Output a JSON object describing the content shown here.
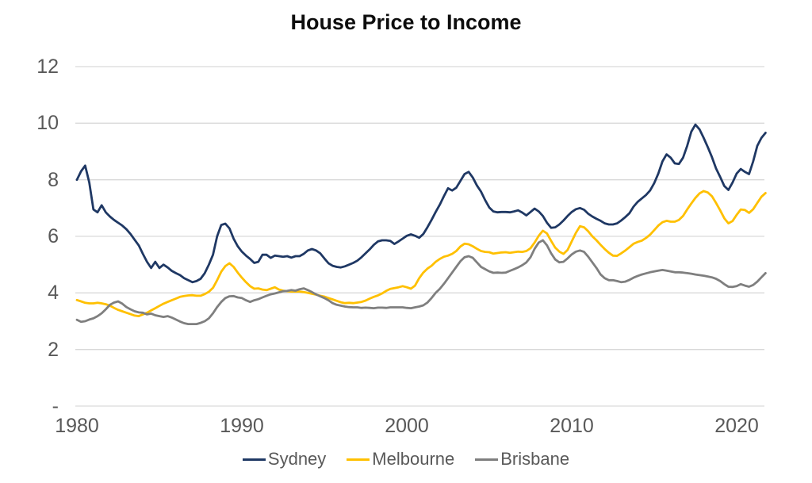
{
  "title": "House Price to Income",
  "chart_data": {
    "type": "line",
    "title": "House Price to Income",
    "xlabel": "",
    "ylabel": "",
    "grid": true,
    "legend_position": "bottom",
    "gridline_color": "#d9d9d9",
    "axis_label_color": "#595959",
    "x_start": 1980,
    "x_step": 0.25,
    "x_end": 2021.75,
    "x_range": [
      1980,
      2021.75
    ],
    "ylim": [
      0,
      12
    ],
    "x_ticks": [
      {
        "label": "1980",
        "value": 1980
      },
      {
        "label": "1990",
        "value": 1990
      },
      {
        "label": "2000",
        "value": 2000
      },
      {
        "label": "2010",
        "value": 2010
      },
      {
        "label": "2020",
        "value": 2020
      }
    ],
    "y_ticks": [
      {
        "label": "12",
        "value": 12
      },
      {
        "label": "10",
        "value": 10
      },
      {
        "label": "8",
        "value": 8
      },
      {
        "label": "6",
        "value": 6
      },
      {
        "label": "4",
        "value": 4
      },
      {
        "label": "2",
        "value": 2
      },
      {
        "label": "-",
        "value": 0
      }
    ],
    "series": [
      {
        "name": "Sydney",
        "color": "#1f3864",
        "values": [
          8.0,
          8.3,
          8.5,
          7.9,
          6.95,
          6.85,
          7.1,
          6.85,
          6.7,
          6.58,
          6.48,
          6.38,
          6.25,
          6.08,
          5.88,
          5.68,
          5.38,
          5.1,
          4.88,
          5.1,
          4.88,
          5.0,
          4.9,
          4.78,
          4.7,
          4.63,
          4.52,
          4.45,
          4.38,
          4.42,
          4.5,
          4.7,
          5.0,
          5.35,
          6.0,
          6.4,
          6.45,
          6.28,
          5.92,
          5.65,
          5.46,
          5.32,
          5.2,
          5.06,
          5.1,
          5.35,
          5.35,
          5.24,
          5.32,
          5.3,
          5.28,
          5.3,
          5.25,
          5.3,
          5.3,
          5.38,
          5.5,
          5.55,
          5.5,
          5.4,
          5.22,
          5.05,
          4.96,
          4.92,
          4.9,
          4.94,
          5.0,
          5.06,
          5.14,
          5.26,
          5.4,
          5.54,
          5.7,
          5.82,
          5.86,
          5.86,
          5.84,
          5.73,
          5.82,
          5.92,
          6.02,
          6.07,
          6.02,
          5.95,
          6.08,
          6.32,
          6.58,
          6.86,
          7.12,
          7.42,
          7.7,
          7.62,
          7.72,
          7.96,
          8.2,
          8.28,
          8.08,
          7.8,
          7.58,
          7.28,
          7.02,
          6.88,
          6.85,
          6.86,
          6.86,
          6.85,
          6.88,
          6.92,
          6.84,
          6.74,
          6.86,
          6.98,
          6.88,
          6.72,
          6.48,
          6.3,
          6.32,
          6.42,
          6.56,
          6.72,
          6.86,
          6.96,
          7.0,
          6.94,
          6.8,
          6.7,
          6.62,
          6.55,
          6.46,
          6.42,
          6.42,
          6.46,
          6.56,
          6.68,
          6.82,
          7.05,
          7.22,
          7.34,
          7.46,
          7.62,
          7.88,
          8.22,
          8.65,
          8.9,
          8.78,
          8.58,
          8.56,
          8.78,
          9.2,
          9.7,
          9.95,
          9.78,
          9.48,
          9.15,
          8.8,
          8.4,
          8.1,
          7.78,
          7.64,
          7.9,
          8.22,
          8.38,
          8.28,
          8.2,
          8.65,
          9.2,
          9.48,
          9.66
        ]
      },
      {
        "name": "Melbourne",
        "color": "#ffc000",
        "values": [
          3.75,
          3.7,
          3.65,
          3.63,
          3.63,
          3.65,
          3.63,
          3.6,
          3.55,
          3.47,
          3.4,
          3.35,
          3.3,
          3.25,
          3.2,
          3.18,
          3.24,
          3.3,
          3.38,
          3.46,
          3.54,
          3.62,
          3.68,
          3.74,
          3.8,
          3.86,
          3.89,
          3.91,
          3.92,
          3.9,
          3.9,
          3.96,
          4.04,
          4.18,
          4.45,
          4.75,
          4.95,
          5.05,
          4.92,
          4.72,
          4.54,
          4.38,
          4.24,
          4.15,
          4.16,
          4.12,
          4.1,
          4.15,
          4.2,
          4.12,
          4.08,
          4.06,
          4.05,
          4.05,
          4.05,
          4.03,
          4.0,
          3.97,
          3.94,
          3.9,
          3.87,
          3.82,
          3.77,
          3.72,
          3.67,
          3.64,
          3.65,
          3.64,
          3.66,
          3.68,
          3.73,
          3.8,
          3.86,
          3.91,
          3.98,
          4.07,
          4.14,
          4.17,
          4.2,
          4.24,
          4.2,
          4.15,
          4.26,
          4.52,
          4.72,
          4.86,
          4.96,
          5.1,
          5.2,
          5.28,
          5.32,
          5.38,
          5.48,
          5.64,
          5.74,
          5.72,
          5.65,
          5.56,
          5.48,
          5.45,
          5.44,
          5.39,
          5.41,
          5.43,
          5.44,
          5.42,
          5.44,
          5.46,
          5.45,
          5.48,
          5.58,
          5.78,
          6.02,
          6.2,
          6.1,
          5.84,
          5.6,
          5.46,
          5.38,
          5.52,
          5.82,
          6.12,
          6.36,
          6.32,
          6.18,
          6.0,
          5.86,
          5.7,
          5.55,
          5.42,
          5.32,
          5.31,
          5.4,
          5.5,
          5.62,
          5.74,
          5.8,
          5.85,
          5.94,
          6.06,
          6.22,
          6.38,
          6.5,
          6.55,
          6.52,
          6.52,
          6.58,
          6.72,
          6.95,
          7.16,
          7.36,
          7.52,
          7.6,
          7.55,
          7.42,
          7.18,
          6.92,
          6.64,
          6.46,
          6.54,
          6.76,
          6.95,
          6.93,
          6.83,
          6.96,
          7.18,
          7.4,
          7.53
        ]
      },
      {
        "name": "Brisbane",
        "color": "#7f7f7f",
        "values": [
          3.05,
          2.98,
          3.0,
          3.06,
          3.1,
          3.18,
          3.28,
          3.42,
          3.58,
          3.66,
          3.7,
          3.62,
          3.5,
          3.42,
          3.35,
          3.31,
          3.3,
          3.24,
          3.27,
          3.21,
          3.18,
          3.15,
          3.18,
          3.13,
          3.06,
          2.99,
          2.93,
          2.9,
          2.9,
          2.9,
          2.94,
          3.0,
          3.1,
          3.28,
          3.5,
          3.68,
          3.82,
          3.88,
          3.89,
          3.84,
          3.82,
          3.74,
          3.68,
          3.74,
          3.78,
          3.84,
          3.9,
          3.95,
          3.98,
          4.02,
          4.06,
          4.07,
          4.1,
          4.08,
          4.13,
          4.16,
          4.1,
          4.03,
          3.95,
          3.88,
          3.82,
          3.74,
          3.64,
          3.58,
          3.55,
          3.52,
          3.5,
          3.49,
          3.49,
          3.47,
          3.48,
          3.47,
          3.46,
          3.48,
          3.48,
          3.47,
          3.49,
          3.49,
          3.49,
          3.49,
          3.47,
          3.46,
          3.49,
          3.52,
          3.56,
          3.66,
          3.82,
          4.0,
          4.14,
          4.32,
          4.52,
          4.72,
          4.92,
          5.12,
          5.26,
          5.3,
          5.24,
          5.08,
          4.92,
          4.84,
          4.76,
          4.71,
          4.72,
          4.71,
          4.72,
          4.78,
          4.84,
          4.9,
          4.98,
          5.08,
          5.26,
          5.56,
          5.78,
          5.86,
          5.68,
          5.4,
          5.18,
          5.08,
          5.1,
          5.22,
          5.36,
          5.46,
          5.5,
          5.45,
          5.28,
          5.08,
          4.88,
          4.65,
          4.52,
          4.45,
          4.45,
          4.42,
          4.38,
          4.4,
          4.46,
          4.54,
          4.6,
          4.65,
          4.69,
          4.73,
          4.76,
          4.79,
          4.81,
          4.79,
          4.76,
          4.73,
          4.73,
          4.72,
          4.7,
          4.68,
          4.65,
          4.63,
          4.61,
          4.58,
          4.55,
          4.5,
          4.42,
          4.31,
          4.22,
          4.21,
          4.24,
          4.31,
          4.26,
          4.22,
          4.28,
          4.4,
          4.55,
          4.7
        ]
      }
    ]
  }
}
